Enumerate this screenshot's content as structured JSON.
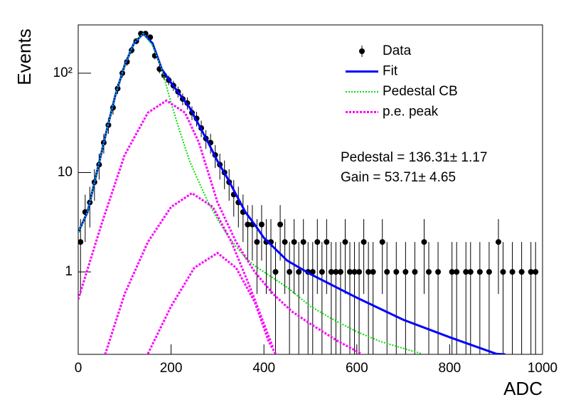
{
  "chart_data": {
    "type": "scatter",
    "x_label": "ADC",
    "y_label": "Events",
    "log_y": true,
    "legend": "top-right",
    "xlim": [
      0,
      1000
    ],
    "xticks": [
      0,
      200,
      400,
      600,
      800,
      1000
    ],
    "ylim": [
      0.148,
      306
    ],
    "yticks": [
      1,
      10,
      {
        "value": 100,
        "label": "10²"
      }
    ],
    "annotations": [
      "Pedestal = 136.31± 1.17",
      "Gain = 53.71± 4.65"
    ],
    "series": [
      {
        "name": "Data",
        "type": "errorbar",
        "color": "#000000",
        "x": [
          5,
          15,
          25,
          35,
          45,
          55,
          65,
          75,
          85,
          95,
          105,
          115,
          125,
          135,
          145,
          155,
          165,
          175,
          185,
          195,
          205,
          215,
          225,
          235,
          245,
          255,
          265,
          275,
          285,
          295,
          305,
          315,
          325,
          335,
          345,
          355,
          365,
          375,
          385,
          395,
          405,
          415,
          425,
          435,
          445,
          455,
          465,
          475,
          485,
          495,
          505,
          515,
          525,
          535,
          545,
          555,
          565,
          575,
          585,
          595,
          605,
          615,
          625,
          635,
          655,
          665,
          685,
          705,
          725,
          745,
          755,
          775,
          805,
          815,
          835,
          845,
          865,
          885,
          905,
          915,
          935,
          955,
          975,
          985
        ],
        "values": [
          2,
          4,
          5,
          8,
          12,
          20,
          30,
          45,
          70,
          100,
          130,
          170,
          210,
          250,
          250,
          230,
          150,
          110,
          95,
          85,
          75,
          65,
          55,
          50,
          40,
          35,
          28,
          22,
          20,
          15,
          12,
          10,
          8,
          6,
          5,
          4,
          3,
          3,
          2,
          3,
          2,
          2,
          1,
          3,
          2,
          1,
          2,
          1,
          2,
          1,
          1,
          2,
          1,
          2,
          1,
          1,
          1,
          2,
          1,
          1,
          1,
          2,
          1,
          1,
          2,
          1,
          1,
          1,
          1,
          2,
          1,
          1,
          1,
          1,
          1,
          1,
          1,
          1,
          2,
          1,
          1,
          1,
          1,
          1
        ],
        "errors": [
          1.4,
          2,
          2.2,
          2.8,
          3.5,
          4.5,
          5.5,
          6.7,
          8.4,
          10,
          11.4,
          13,
          14.5,
          15.8,
          15.8,
          15.2,
          12.2,
          10.5,
          9.7,
          9.2,
          8.7,
          8.1,
          7.4,
          7.1,
          6.3,
          5.9,
          5.3,
          4.7,
          4.5,
          3.9,
          3.5,
          3.2,
          2.8,
          2.4,
          2.2,
          2,
          1.7,
          1.7,
          1.4,
          1.7,
          1.4,
          1.4,
          1,
          1.7,
          1.4,
          1,
          1.4,
          1,
          1.4,
          1,
          1,
          1.4,
          1,
          1.4,
          1,
          1,
          1,
          1.4,
          1,
          1,
          1,
          1.4,
          1,
          1,
          1.4,
          1,
          1,
          1,
          1,
          1.4,
          1,
          1,
          1,
          1,
          1,
          1,
          1,
          1,
          1.4,
          1,
          1,
          1,
          1,
          1
        ]
      },
      {
        "name": "Fit",
        "type": "line",
        "color": "#0000ff",
        "width": 3,
        "dash": "",
        "x": [
          0,
          20,
          40,
          60,
          80,
          100,
          120,
          140,
          160,
          180,
          200,
          220,
          240,
          260,
          280,
          300,
          320,
          340,
          360,
          380,
          400,
          450,
          500,
          600,
          700,
          800,
          900,
          920
        ],
        "values": [
          2.5,
          4,
          10,
          25,
          60,
          120,
          200,
          250,
          200,
          110,
          80,
          60,
          45,
          30,
          20,
          13,
          9,
          6,
          4,
          3,
          2.2,
          1.3,
          0.95,
          0.55,
          0.33,
          0.22,
          0.15,
          0.148
        ]
      },
      {
        "name": "Pedestal CB",
        "type": "line",
        "color": "#00dd00",
        "width": 2,
        "dash": "2 2",
        "x": [
          0,
          20,
          40,
          60,
          80,
          100,
          120,
          140,
          160,
          180,
          200,
          220,
          240,
          260,
          280,
          300,
          320,
          340,
          360,
          380,
          400,
          450,
          500,
          550,
          600,
          650,
          700,
          740
        ],
        "values": [
          2.5,
          4,
          10,
          25,
          60,
          120,
          200,
          250,
          190,
          110,
          50,
          25,
          13,
          8,
          5,
          3.4,
          2.4,
          1.8,
          1.4,
          1.15,
          1,
          0.7,
          0.45,
          0.33,
          0.25,
          0.2,
          0.17,
          0.15
        ]
      },
      {
        "name": "p.e. peak",
        "type": "line",
        "color": "#ff00ff",
        "width": 3,
        "dash": "3 2",
        "x": [
          0,
          50,
          100,
          150,
          190,
          230,
          260,
          300,
          340,
          380,
          420,
          460,
          500,
          560,
          610
        ],
        "values": [
          0.53,
          3,
          15,
          40,
          53,
          40,
          20,
          5,
          2,
          1,
          0.6,
          0.4,
          0.3,
          0.2,
          0.15
        ]
      },
      {
        "type": "line",
        "color": "#ff00ff",
        "width": 3,
        "dash": "3 2",
        "x": [
          58,
          100,
          150,
          200,
          245,
          290,
          330,
          370,
          400,
          420
        ],
        "values": [
          0.148,
          0.6,
          2,
          4.5,
          6.2,
          4.5,
          2,
          0.7,
          0.3,
          0.17
        ]
      },
      {
        "type": "line",
        "color": "#ff00ff",
        "width": 3,
        "dash": "3 2",
        "x": [
          150,
          200,
          250,
          300,
          340,
          380,
          410,
          425
        ],
        "values": [
          0.15,
          0.45,
          1.1,
          1.55,
          1.1,
          0.5,
          0.2,
          0.15
        ]
      }
    ]
  }
}
